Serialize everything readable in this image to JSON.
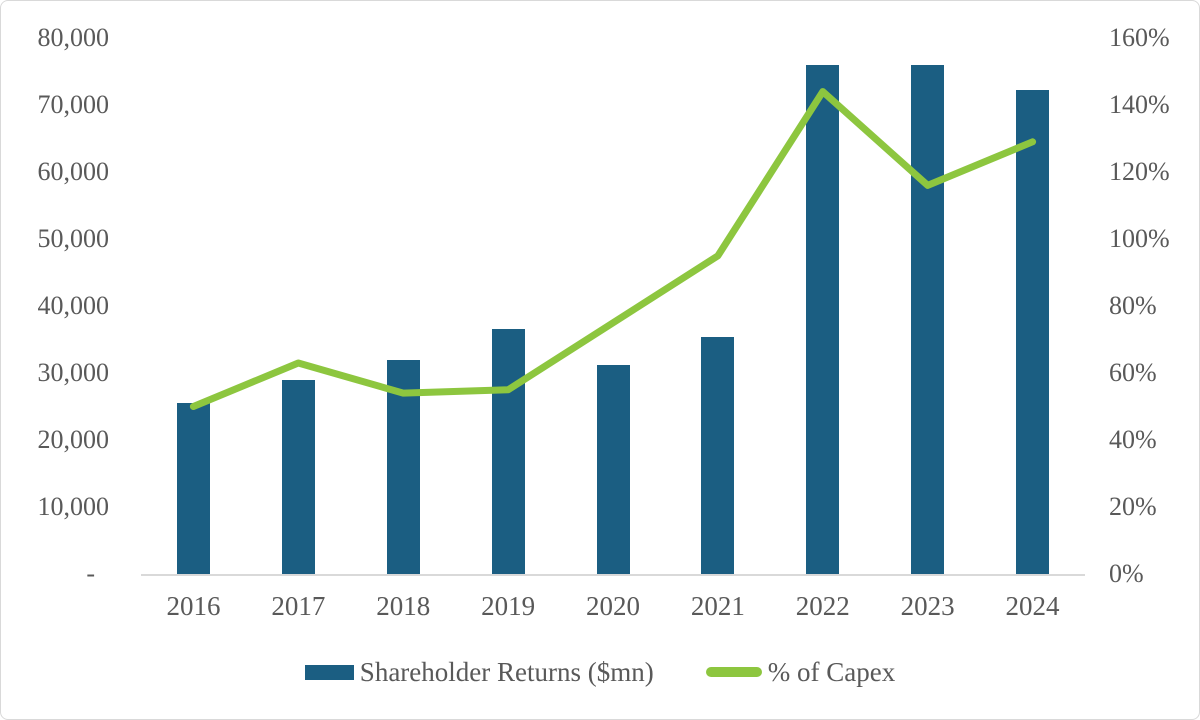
{
  "chart_data": {
    "type": "bar",
    "subtype": "combo-bar-line-dual-axis",
    "title": "",
    "categories": [
      "2016",
      "2017",
      "2018",
      "2019",
      "2020",
      "2021",
      "2022",
      "2023",
      "2024"
    ],
    "series": [
      {
        "name": "Shareholder Returns ($mn)",
        "type": "bar",
        "axis": "left",
        "values": [
          25500,
          29000,
          32000,
          36600,
          31200,
          35400,
          76000,
          76000,
          72300
        ]
      },
      {
        "name": "% of Capex",
        "type": "line",
        "axis": "right",
        "values": [
          50,
          63,
          54,
          55,
          75,
          95,
          144,
          116,
          129
        ]
      }
    ],
    "left_axis": {
      "min": 0,
      "max": 80000,
      "tick_step": 10000,
      "tick_labels_top_to_bottom": [
        "80,000",
        "70,000",
        "60,000",
        "50,000",
        "40,000",
        "30,000",
        "20,000",
        "10,000",
        "-"
      ]
    },
    "right_axis": {
      "min": 0,
      "max": 160,
      "tick_step": 20,
      "unit": "%",
      "tick_labels_top_to_bottom": [
        "160%",
        "140%",
        "120%",
        "100%",
        "80%",
        "60%",
        "40%",
        "20%",
        "0%"
      ]
    },
    "grid": false,
    "legend_position": "bottom"
  },
  "colors": {
    "bar": "#1b5e82",
    "line": "#8dc63f",
    "axis_text": "#595959",
    "axis_line": "#d9d9d9"
  }
}
